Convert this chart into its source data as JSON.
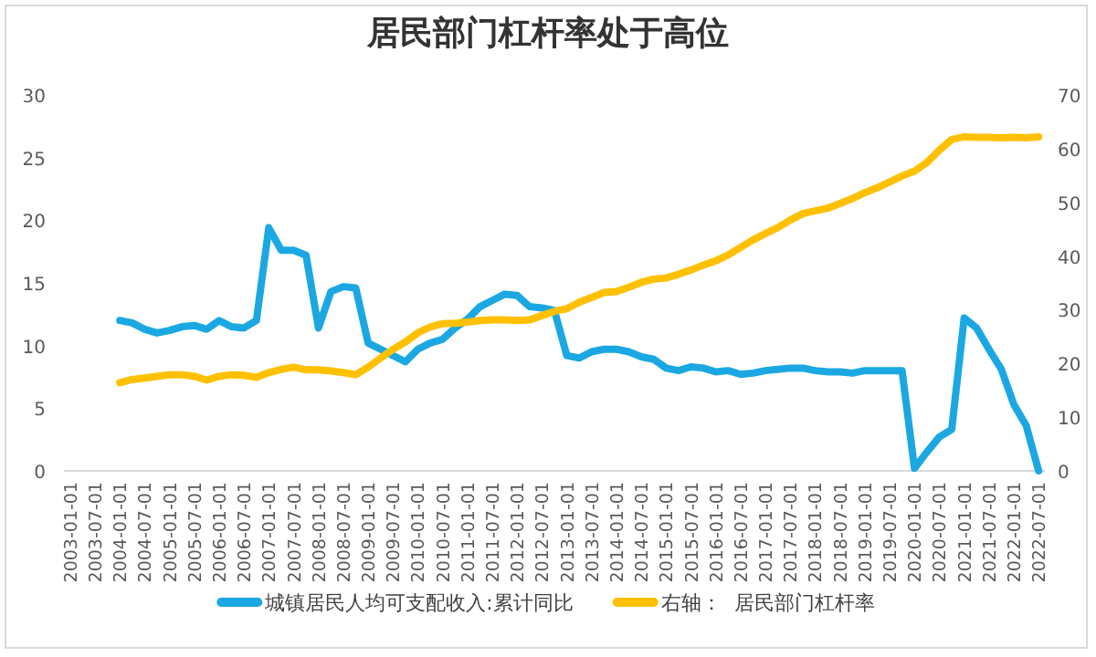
{
  "chart_data": {
    "type": "line",
    "title": "居民部门杠杆率处于高位",
    "categories": [
      "2003-01-01",
      null,
      "2003-07-01",
      null,
      "2004-01-01",
      null,
      "2004-07-01",
      null,
      "2005-01-01",
      null,
      "2005-07-01",
      null,
      "2006-01-01",
      null,
      "2006-07-01",
      null,
      "2007-01-01",
      null,
      "2007-07-01",
      null,
      "2008-01-01",
      null,
      "2008-07-01",
      null,
      "2009-01-01",
      null,
      "2009-07-01",
      null,
      "2010-01-01",
      null,
      "2010-07-01",
      null,
      "2011-01-01",
      null,
      "2011-07-01",
      null,
      "2012-01-01",
      null,
      "2012-07-01",
      null,
      "2013-01-01",
      null,
      "2013-07-01",
      null,
      "2014-01-01",
      null,
      "2014-07-01",
      null,
      "2015-01-01",
      null,
      "2015-07-01",
      null,
      "2016-01-01",
      null,
      "2016-07-01",
      null,
      "2017-01-01",
      null,
      "2017-07-01",
      null,
      "2018-01-01",
      null,
      "2018-07-01",
      null,
      "2019-01-01",
      null,
      "2019-07-01",
      null,
      "2020-01-01",
      null,
      "2020-07-01",
      null,
      "2021-01-01",
      null,
      "2021-07-01",
      null,
      "2022-01-01",
      null,
      "2022-07-01"
    ],
    "series": [
      {
        "name": "城镇居民人均可支配收入:累计同比",
        "color": "#1ba8e2",
        "values": [
          null,
          null,
          null,
          null,
          12.0,
          11.8,
          11.3,
          11.0,
          11.2,
          11.5,
          11.6,
          11.3,
          12.0,
          11.5,
          11.4,
          12.0,
          19.4,
          17.6,
          17.6,
          17.2,
          11.4,
          14.3,
          14.7,
          14.6,
          10.2,
          9.7,
          9.2,
          8.7,
          9.7,
          10.2,
          10.5,
          11.4,
          12.1,
          13.1,
          13.6,
          14.1,
          14.0,
          13.1,
          13.0,
          12.8,
          9.2,
          9.0,
          9.5,
          9.7,
          9.7,
          9.5,
          9.1,
          8.9,
          8.2,
          8.0,
          8.3,
          8.2,
          7.9,
          8.0,
          7.7,
          7.8,
          8.0,
          8.1,
          8.2,
          8.2,
          8.0,
          7.9,
          7.9,
          7.8,
          8.0,
          8.0,
          8.0,
          8.0,
          0.2,
          1.5,
          2.7,
          3.3,
          12.2,
          11.4,
          9.7,
          8.1,
          5.3,
          3.6,
          0
        ]
      },
      {
        "name": "右轴：  居民部门杠杆率",
        "color": "#ffc000",
        "axis": "y2",
        "values": [
          null,
          null,
          null,
          null,
          16.4,
          17.0,
          17.3,
          17.6,
          17.9,
          17.9,
          17.6,
          16.9,
          17.6,
          17.9,
          17.8,
          17.4,
          18.3,
          18.9,
          19.3,
          18.8,
          18.8,
          18.6,
          18.3,
          17.9,
          19.3,
          21.0,
          22.6,
          24.0,
          25.7,
          26.8,
          27.4,
          27.5,
          27.7,
          28.0,
          28.1,
          28.1,
          28.0,
          28.1,
          28.9,
          29.7,
          30.2,
          31.4,
          32.3,
          33.2,
          33.4,
          34.2,
          35.1,
          35.7,
          35.9,
          36.6,
          37.4,
          38.3,
          39.1,
          40.2,
          41.6,
          43.0,
          44.2,
          45.3,
          46.7,
          47.9,
          48.4,
          48.9,
          49.8,
          50.7,
          51.8,
          52.7,
          53.8,
          54.9,
          55.8,
          57.4,
          59.7,
          61.7,
          62.2,
          62.1,
          62.1,
          62.0,
          62.1,
          62.0,
          62.2
        ]
      }
    ],
    "ylim": [
      0,
      30
    ],
    "yticks": [
      0,
      5,
      10,
      15,
      20,
      25,
      30
    ],
    "y2lim": [
      0,
      70
    ],
    "y2ticks": [
      0,
      10,
      20,
      30,
      40,
      50,
      60,
      70
    ],
    "grid": false,
    "legend": "bottom",
    "marker": "none",
    "line_style": "solid"
  }
}
